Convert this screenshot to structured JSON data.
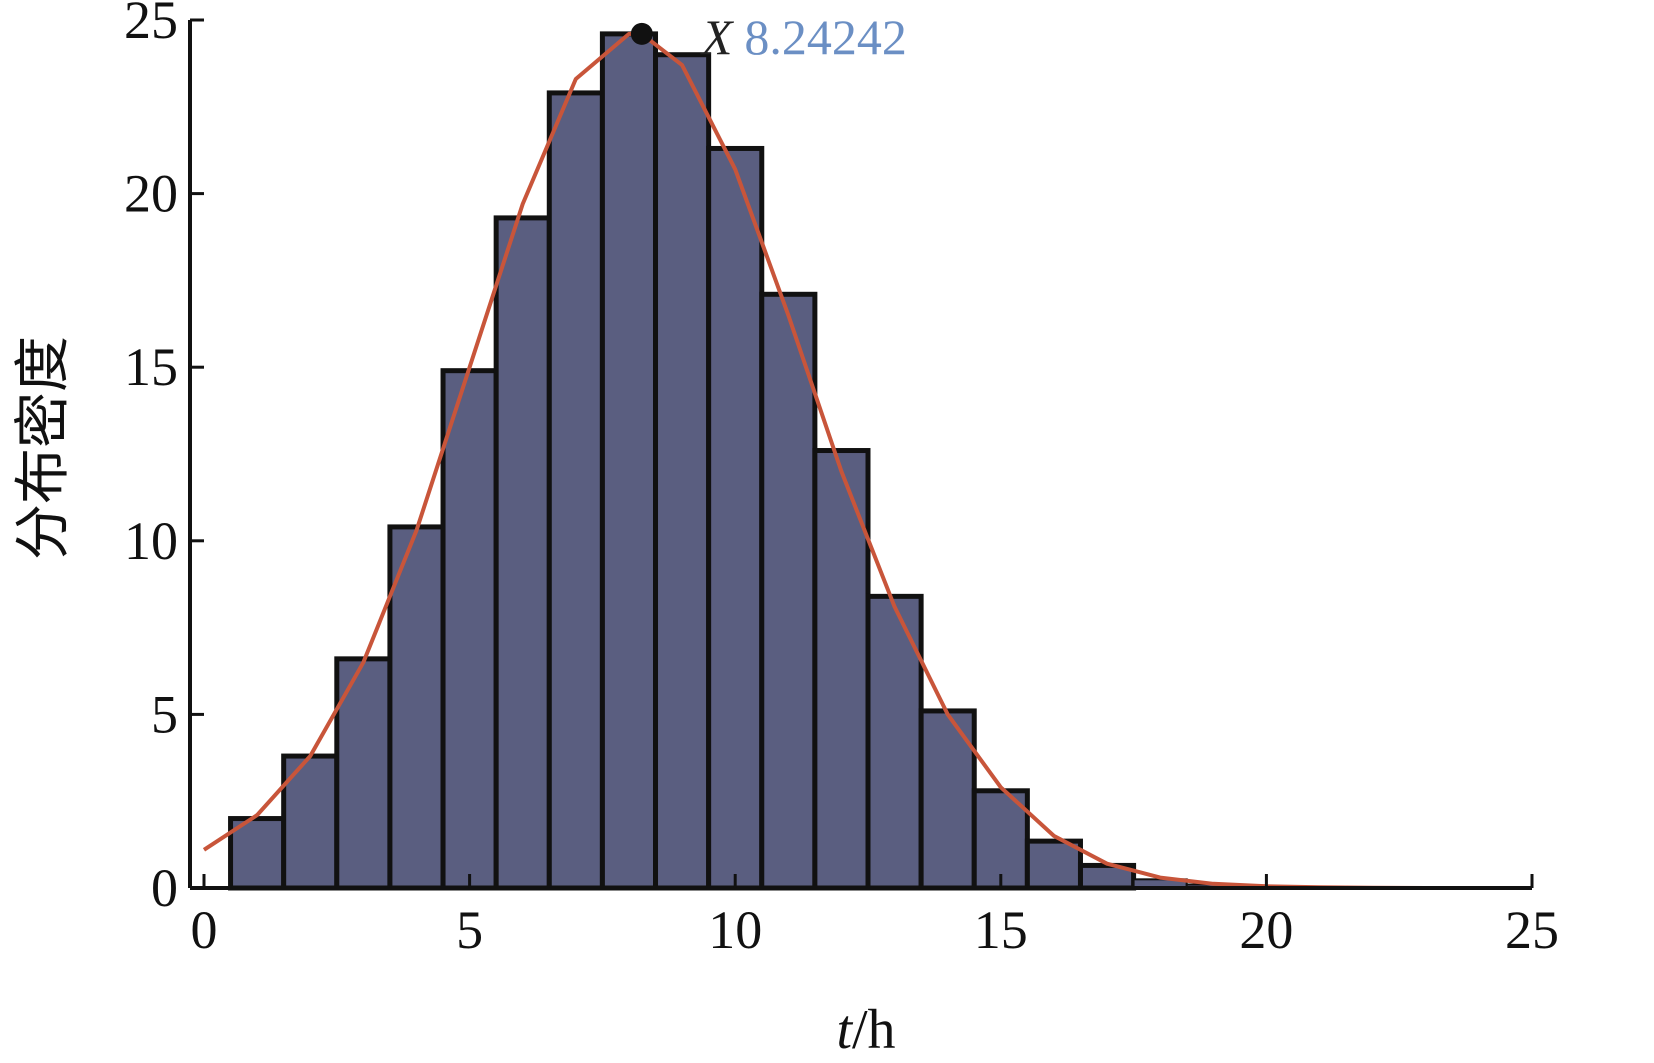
{
  "chart_data": {
    "type": "bar",
    "bar_width": 1,
    "x": [
      1,
      2,
      3,
      4,
      5,
      6,
      7,
      8,
      9,
      10,
      11,
      12,
      13,
      14,
      15,
      16,
      17,
      18,
      19,
      20,
      21,
      22,
      23,
      24
    ],
    "values": [
      2.0,
      3.8,
      6.6,
      10.4,
      14.9,
      19.3,
      22.9,
      24.6,
      24.0,
      21.3,
      17.1,
      12.6,
      8.4,
      5.1,
      2.8,
      1.35,
      0.65,
      0.25,
      0.1,
      0.05,
      0.02,
      0.01,
      0.005,
      0.002
    ],
    "curve": {
      "x": [
        0,
        1,
        2,
        3,
        4,
        5,
        6,
        7,
        8,
        8.24,
        9,
        10,
        11,
        12,
        13,
        14,
        15,
        16,
        17,
        18,
        19,
        20,
        21,
        22,
        23,
        24
      ],
      "y": [
        1.1,
        2.1,
        3.8,
        6.5,
        10.3,
        15.0,
        19.7,
        23.3,
        24.6,
        24.6,
        23.7,
        20.7,
        16.5,
        12.0,
        8.1,
        5.0,
        2.9,
        1.5,
        0.7,
        0.3,
        0.12,
        0.05,
        0.02,
        0.01,
        0.0,
        0.0
      ],
      "color": "#c8553a"
    },
    "bar_color": "#5a5e80",
    "bar_edge_color": "#111111",
    "xlim": [
      0,
      25
    ],
    "ylim": [
      0,
      25
    ],
    "xticks": [
      0,
      5,
      10,
      15,
      20,
      25
    ],
    "yticks": [
      0,
      5,
      10,
      15,
      20,
      25
    ],
    "xlabel_italic": "t",
    "xlabel_rest": "/h",
    "ylabel": "分布密度",
    "annotation": {
      "x": 8.24242,
      "y": 24.6,
      "label": "X",
      "value": "8.24242",
      "label_color": "#222222",
      "value_color": "#6b8fc4"
    },
    "grid": false
  }
}
